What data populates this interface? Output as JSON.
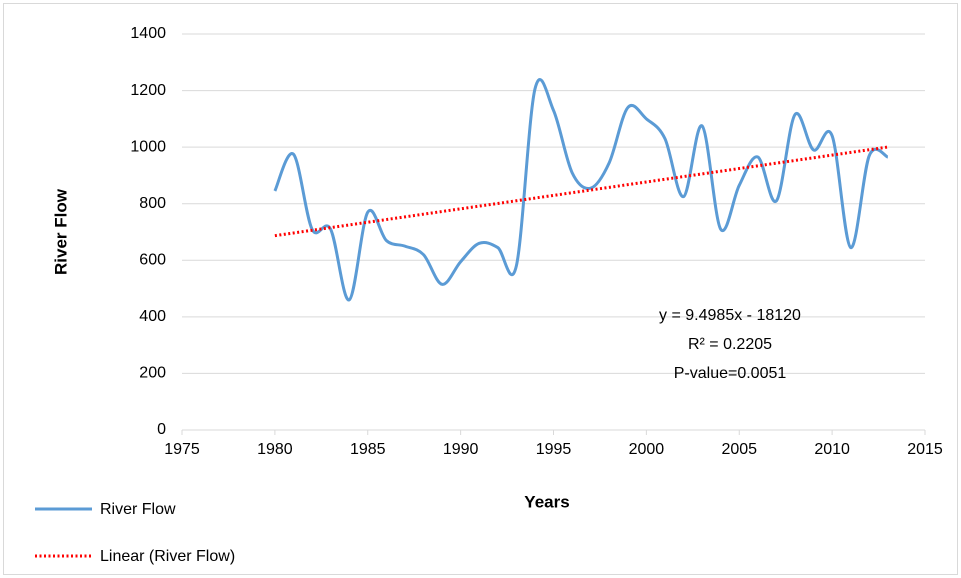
{
  "chart_data": {
    "type": "line",
    "x_label": "Years",
    "y_label": "River Flow",
    "x": [
      1980,
      1981,
      1982,
      1983,
      1984,
      1985,
      1986,
      1987,
      1988,
      1989,
      1990,
      1991,
      1992,
      1993,
      1994,
      1995,
      1996,
      1997,
      1998,
      1999,
      2000,
      2001,
      2002,
      2003,
      2004,
      2005,
      2006,
      2007,
      2008,
      2009,
      2010,
      2011,
      2012,
      2013
    ],
    "series": [
      {
        "name": "River Flow",
        "color": "#5b9bd5",
        "smooth": true,
        "dash": false,
        "values": [
          845,
          975,
          710,
          710,
          460,
          770,
          670,
          650,
          620,
          515,
          595,
          660,
          645,
          580,
          1205,
          1130,
          910,
          855,
          945,
          1140,
          1100,
          1030,
          825,
          1075,
          710,
          865,
          965,
          810,
          1115,
          990,
          1040,
          645,
          970,
          965
        ]
      },
      {
        "name": "Linear (River Flow)",
        "color": "#ff0000",
        "smooth": false,
        "dash": true,
        "values": [
          687.0,
          696.5,
          706.0,
          715.5,
          725.0,
          734.5,
          744.0,
          753.5,
          763.0,
          772.5,
          782.0,
          791.5,
          800.9,
          810.4,
          819.9,
          829.4,
          838.9,
          848.4,
          857.9,
          867.4,
          876.9,
          886.4,
          895.9,
          905.4,
          914.9,
          924.4,
          933.9,
          943.4,
          952.9,
          962.4,
          971.9,
          981.4,
          990.9,
          1000.4
        ]
      }
    ],
    "annotations": [
      "y = 9.4985x - 18120",
      "R² = 0.2205",
      "P-value=0.0051"
    ],
    "xlim": [
      1975,
      2015
    ],
    "xticks": [
      1975,
      1980,
      1985,
      1990,
      1995,
      2000,
      2005,
      2010,
      2015
    ],
    "ylim": [
      0,
      1400
    ],
    "yticks": [
      0,
      200,
      400,
      600,
      800,
      1000,
      1200,
      1400
    ],
    "grid": true,
    "legend": "bottom-left"
  }
}
